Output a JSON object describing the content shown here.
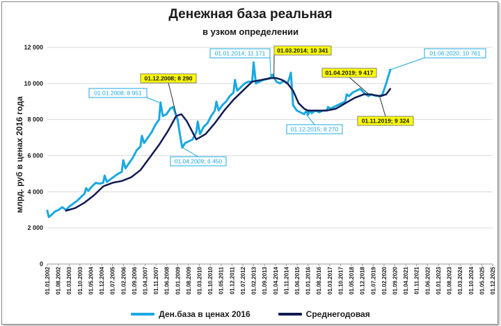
{
  "chart_data": {
    "type": "line",
    "title": "Денежная база реальная",
    "subtitle": "в узком определении",
    "ylabel": "млрд. руб  в ценах 2016 года",
    "ylim": [
      0,
      12000
    ],
    "yticks": [
      "0",
      "2 000",
      "4 000",
      "6 000",
      "8 000",
      "10 000",
      "12 000"
    ],
    "ytick_values": [
      0,
      2000,
      4000,
      6000,
      8000,
      10000,
      12000
    ],
    "xticks": [
      "01.01.2002",
      "01.08.2002",
      "01.03.2003",
      "01.10.2003",
      "01.05.2004",
      "01.12.2004",
      "01.07.2005",
      "01.02.2006",
      "01.09.2006",
      "01.04.2007",
      "01.11.2007",
      "01.06.2008",
      "01.01.2009",
      "01.08.2009",
      "01.03.2010",
      "01.10.2010",
      "01.05.2011",
      "01.12.2011",
      "01.07.2012",
      "01.02.2013",
      "01.09.2013",
      "01.04.2014",
      "01.11.2014",
      "01.06.2015",
      "01.01.2016",
      "01.08.2016",
      "01.03.2017",
      "01.10.2017",
      "01.05.2018",
      "01.12.2018",
      "01.07.2019",
      "01.02.2020",
      "01.09.2020",
      "01.04.2021",
      "01.11.2021",
      "01.06.2022",
      "01.01.2023",
      "01.08.2023",
      "01.03.2024",
      "01.10.2024",
      "01.05.2025",
      "01.12.2025"
    ],
    "xtick_years": [
      2002.0,
      2002.583,
      2003.167,
      2003.75,
      2004.333,
      2004.917,
      2005.5,
      2006.083,
      2006.667,
      2007.25,
      2007.833,
      2008.417,
      2009.0,
      2009.583,
      2010.167,
      2010.75,
      2011.333,
      2011.917,
      2012.5,
      2013.083,
      2013.667,
      2014.25,
      2014.833,
      2015.417,
      2016.0,
      2016.583,
      2017.167,
      2017.75,
      2018.333,
      2018.917,
      2019.5,
      2020.083,
      2020.667,
      2021.25,
      2021.833,
      2022.417,
      2023.0,
      2023.583,
      2024.167,
      2024.75,
      2025.333,
      2025.917
    ],
    "series": [
      {
        "name": "Ден.база в ценах 2016",
        "color": "#1ba8e0",
        "x": [
          2002.0,
          2002.08,
          2002.2,
          2002.4,
          2002.6,
          2002.8,
          2003.0,
          2003.2,
          2003.4,
          2003.6,
          2003.8,
          2004.0,
          2004.08,
          2004.2,
          2004.4,
          2004.6,
          2004.8,
          2005.0,
          2005.08,
          2005.2,
          2005.4,
          2005.6,
          2005.8,
          2006.0,
          2006.08,
          2006.2,
          2006.4,
          2006.6,
          2006.8,
          2007.0,
          2007.08,
          2007.2,
          2007.4,
          2007.6,
          2007.8,
          2008.0,
          2008.08,
          2008.2,
          2008.4,
          2008.6,
          2008.75,
          2008.9,
          2009.0,
          2009.15,
          2009.25,
          2009.4,
          2009.6,
          2009.8,
          2010.0,
          2010.08,
          2010.2,
          2010.4,
          2010.6,
          2010.8,
          2011.0,
          2011.08,
          2011.2,
          2011.4,
          2011.6,
          2011.8,
          2012.0,
          2012.08,
          2012.2,
          2012.4,
          2012.6,
          2012.8,
          2013.0,
          2013.08,
          2013.2,
          2013.4,
          2013.6,
          2013.8,
          2014.0,
          2014.08,
          2014.17,
          2014.3,
          2014.5,
          2014.7,
          2014.9,
          2015.0,
          2015.08,
          2015.2,
          2015.4,
          2015.6,
          2015.8,
          2015.92,
          2016.0,
          2016.08,
          2016.2,
          2016.4,
          2016.6,
          2016.8,
          2017.0,
          2017.08,
          2017.2,
          2017.4,
          2017.6,
          2017.8,
          2018.0,
          2018.08,
          2018.2,
          2018.4,
          2018.6,
          2018.8,
          2019.0,
          2019.08,
          2019.25,
          2019.4,
          2019.6,
          2019.83,
          2020.0,
          2020.2,
          2020.42
        ],
        "values": [
          2950,
          2600,
          2700,
          2900,
          3000,
          3150,
          3000,
          3200,
          3350,
          3500,
          3700,
          3900,
          4200,
          4050,
          4300,
          4500,
          4450,
          4500,
          4900,
          4550,
          4700,
          4850,
          5000,
          5100,
          5750,
          5300,
          5600,
          5900,
          6300,
          6500,
          7100,
          6700,
          7000,
          7300,
          7700,
          8000,
          8951,
          8200,
          8300,
          8600,
          8700,
          8290,
          8000,
          7000,
          6450,
          6700,
          6800,
          6900,
          7300,
          7900,
          7200,
          7600,
          7800,
          8200,
          8500,
          9000,
          8500,
          8800,
          9000,
          9300,
          9500,
          10200,
          9600,
          9800,
          10000,
          10100,
          10100,
          11171,
          10000,
          10100,
          10200,
          10250,
          10300,
          10500,
          10341,
          10100,
          10000,
          10150,
          10000,
          10300,
          10600,
          8800,
          8500,
          8400,
          8300,
          8500,
          8270,
          8500,
          8350,
          8500,
          8400,
          8500,
          8500,
          8700,
          8600,
          8700,
          8800,
          8900,
          9000,
          9400,
          9300,
          9500,
          9600,
          9700,
          9500,
          9417,
          9300,
          9400,
          9324,
          9300,
          9400,
          10000,
          10761
        ]
      },
      {
        "name": "Среднегодовая",
        "color": "#101a52",
        "x": [
          2003.0,
          2003.5,
          2004.0,
          2004.5,
          2005.0,
          2005.5,
          2006.0,
          2006.5,
          2007.0,
          2007.5,
          2008.0,
          2008.5,
          2008.92,
          2009.2,
          2009.5,
          2009.8,
          2010.0,
          2010.5,
          2011.0,
          2011.5,
          2012.0,
          2012.5,
          2013.0,
          2013.5,
          2014.0,
          2014.3,
          2014.6,
          2014.9,
          2015.2,
          2015.5,
          2015.8,
          2016.0,
          2016.5,
          2017.0,
          2017.5,
          2018.0,
          2018.5,
          2019.0,
          2019.3,
          2019.6,
          2019.9,
          2020.2,
          2020.42
        ],
        "values": [
          2950,
          3100,
          3400,
          3800,
          4300,
          4500,
          4600,
          4800,
          5200,
          5900,
          6600,
          7400,
          8200,
          8300,
          7900,
          7300,
          6900,
          7200,
          7800,
          8500,
          9100,
          9600,
          10100,
          10200,
          10300,
          10300,
          10200,
          10000,
          9600,
          8900,
          8600,
          8500,
          8500,
          8500,
          8600,
          8900,
          9200,
          9400,
          9400,
          9350,
          9300,
          9400,
          9700
        ]
      }
    ],
    "legend_position": "bottom",
    "grid": true,
    "annotations": [
      {
        "text": "01.01.2008; 8 951",
        "style": "outline"
      },
      {
        "text": "01.12.2008;  8 290",
        "style": "highlight"
      },
      {
        "text": "01.04.2009; 6 450",
        "style": "outline"
      },
      {
        "text": "01.01.2014; 11 171",
        "style": "outline"
      },
      {
        "text": "01.03.2014;  10 341",
        "style": "highlight"
      },
      {
        "text": "01.12.2015; 8 270",
        "style": "outline"
      },
      {
        "text": "01.04.2019;  9 417",
        "style": "highlight"
      },
      {
        "text": "01.11.2019;  9 324",
        "style": "highlight"
      },
      {
        "text": "01.06.2020; 10 761",
        "style": "outline"
      }
    ]
  }
}
